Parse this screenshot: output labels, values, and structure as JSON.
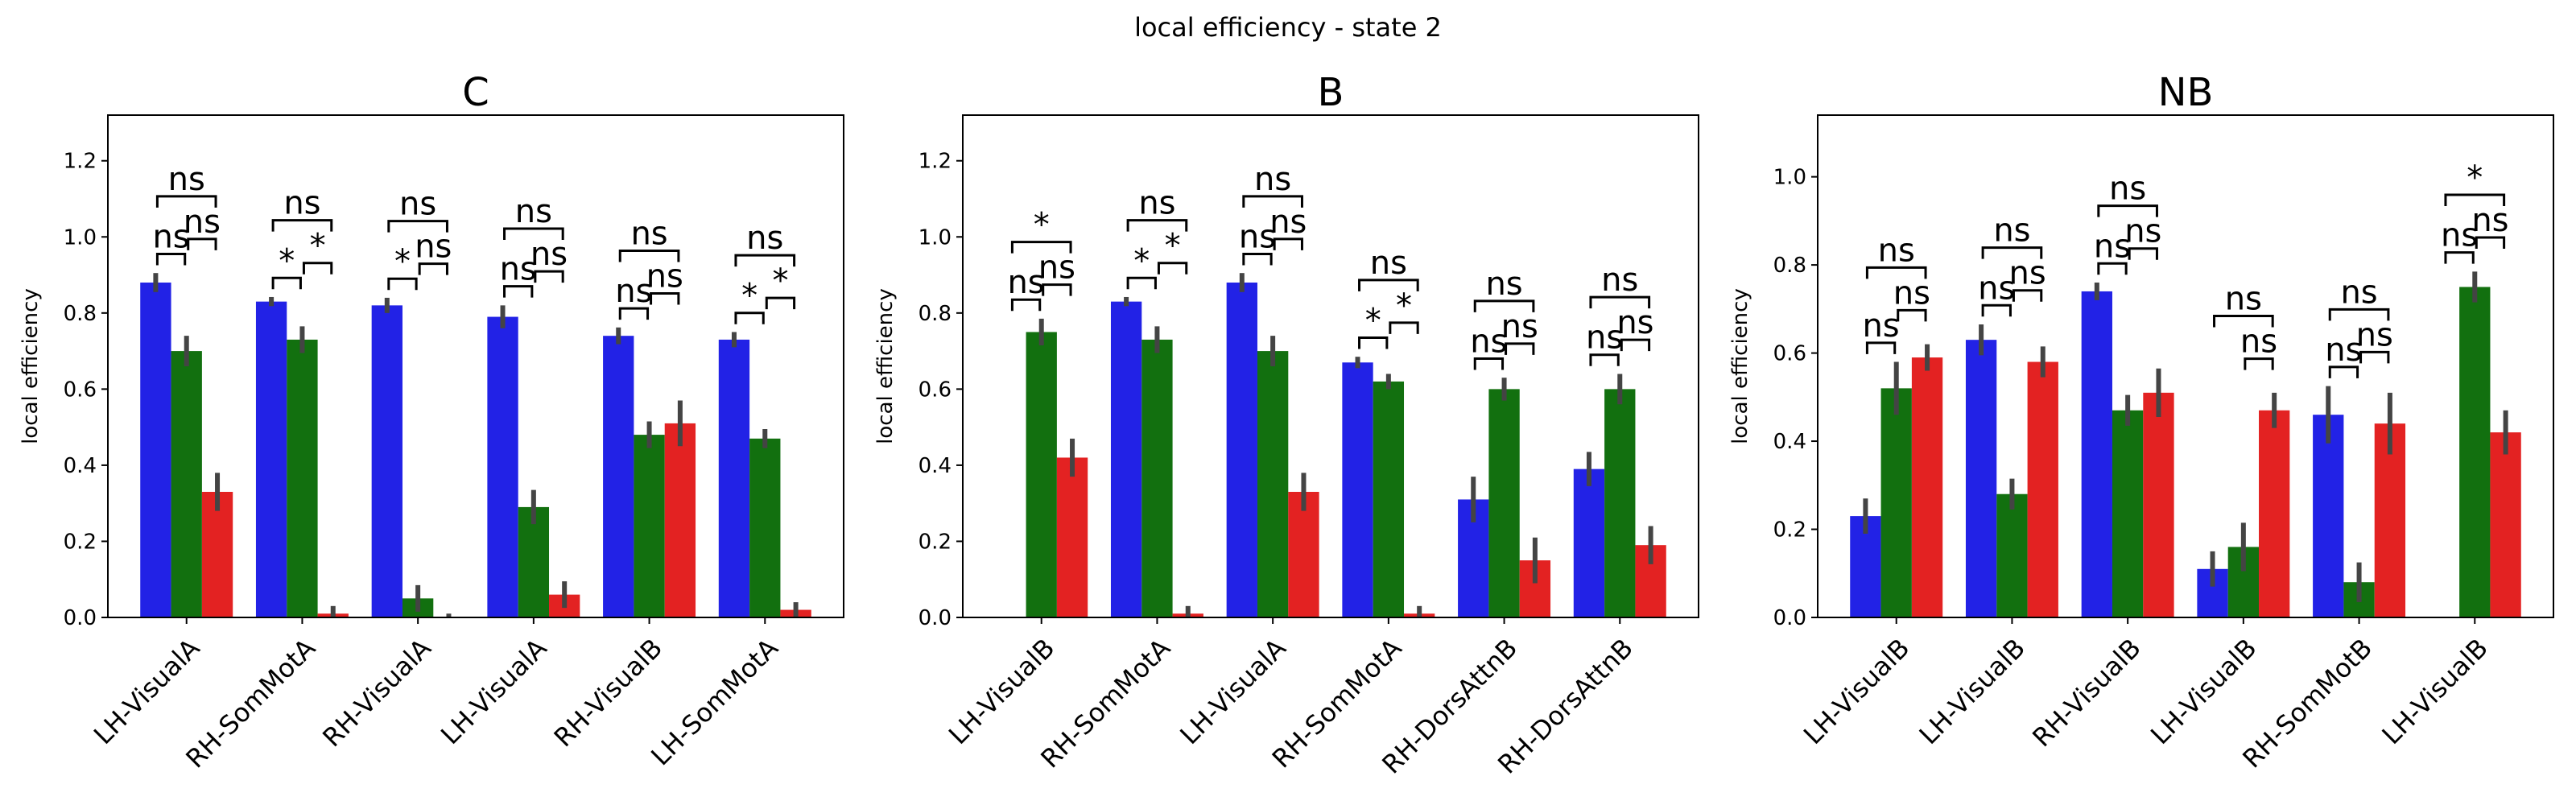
{
  "figure": {
    "title": "local efficiency - state 2"
  },
  "colors": {
    "series1": "#2222e6",
    "series2": "#12700f",
    "series3": "#e32222",
    "errorbar": "#444444",
    "axes": "#000000"
  },
  "chart_data": [
    {
      "type": "bar",
      "title": "C",
      "ylabel": "local efficiency",
      "ylim": [
        0,
        1.32
      ],
      "yticks": [
        0.0,
        0.2,
        0.4,
        0.6,
        0.8,
        1.0,
        1.2
      ],
      "categories": [
        "LH-VisualA",
        "RH-SomMotA",
        "RH-VisualA",
        "LH-VisualA",
        "RH-VisualB",
        "LH-SomMotA"
      ],
      "series": [
        {
          "values": [
            0.88,
            0.83,
            0.82,
            0.79,
            0.74,
            0.73
          ],
          "err": [
            0.025,
            0.012,
            0.02,
            0.03,
            0.022,
            0.02
          ]
        },
        {
          "values": [
            0.7,
            0.73,
            0.05,
            0.29,
            0.48,
            0.47
          ],
          "err": [
            0.04,
            0.035,
            0.035,
            0.045,
            0.035,
            0.025
          ]
        },
        {
          "values": [
            0.33,
            0.01,
            0.0,
            0.06,
            0.51,
            0.02
          ],
          "err": [
            0.05,
            0.02,
            0.01,
            0.035,
            0.06,
            0.02
          ]
        }
      ],
      "annotations": [
        [
          "ns",
          "ns",
          "ns"
        ],
        [
          "*",
          "*",
          "ns"
        ],
        [
          "*",
          "ns",
          "ns"
        ],
        [
          "ns",
          "ns",
          "ns"
        ],
        [
          "ns",
          "ns",
          "ns"
        ],
        [
          "*",
          "*",
          "ns"
        ]
      ]
    },
    {
      "type": "bar",
      "title": "B",
      "ylabel": "local efficiency",
      "ylim": [
        0,
        1.32
      ],
      "yticks": [
        0.0,
        0.2,
        0.4,
        0.6,
        0.8,
        1.0,
        1.2
      ],
      "categories": [
        "LH-VisualB",
        "RH-SomMotA",
        "LH-VisualA",
        "RH-SomMotA",
        "RH-DorsAttnB",
        "RH-DorsAttnB"
      ],
      "series": [
        {
          "values": [
            0.0,
            0.83,
            0.88,
            0.67,
            0.31,
            0.39
          ],
          "err": [
            0,
            0.012,
            0.025,
            0.015,
            0.06,
            0.045
          ]
        },
        {
          "values": [
            0.75,
            0.73,
            0.7,
            0.62,
            0.6,
            0.6
          ],
          "err": [
            0.035,
            0.035,
            0.04,
            0.02,
            0.03,
            0.04
          ]
        },
        {
          "values": [
            0.42,
            0.01,
            0.33,
            0.01,
            0.15,
            0.19
          ],
          "err": [
            0.05,
            0.02,
            0.05,
            0.02,
            0.06,
            0.05
          ]
        }
      ],
      "annotations": [
        [
          "ns",
          "ns",
          "*"
        ],
        [
          "*",
          "*",
          "ns"
        ],
        [
          "ns",
          "ns",
          "ns"
        ],
        [
          "*",
          "*",
          "ns"
        ],
        [
          "ns",
          "ns",
          "ns"
        ],
        [
          "ns",
          "ns",
          "ns"
        ]
      ]
    },
    {
      "type": "bar",
      "title": "NB",
      "ylabel": "local efficiency",
      "ylim": [
        0,
        1.14
      ],
      "yticks": [
        0.0,
        0.2,
        0.4,
        0.6,
        0.8,
        1.0
      ],
      "categories": [
        "LH-VisualB",
        "LH-VisualB",
        "RH-VisualB",
        "LH-VisualB",
        "RH-SomMotB",
        "LH-VisualB"
      ],
      "series": [
        {
          "values": [
            0.23,
            0.63,
            0.74,
            0.11,
            0.46,
            0.0
          ],
          "err": [
            0.04,
            0.035,
            0.02,
            0.04,
            0.065,
            0
          ]
        },
        {
          "values": [
            0.52,
            0.28,
            0.47,
            0.16,
            0.08,
            0.75
          ],
          "err": [
            0.06,
            0.035,
            0.035,
            0.055,
            0.045,
            0.035
          ]
        },
        {
          "values": [
            0.59,
            0.58,
            0.51,
            0.47,
            0.44,
            0.42
          ],
          "err": [
            0.03,
            0.035,
            0.055,
            0.04,
            0.07,
            0.05
          ]
        }
      ],
      "annotations": [
        [
          "ns",
          "ns",
          "ns"
        ],
        [
          "ns",
          "ns",
          "ns"
        ],
        [
          "ns",
          "ns",
          "ns"
        ],
        [
          "",
          "ns",
          "ns"
        ],
        [
          "ns",
          "ns",
          "ns"
        ],
        [
          "ns",
          "ns",
          "*"
        ]
      ]
    }
  ]
}
